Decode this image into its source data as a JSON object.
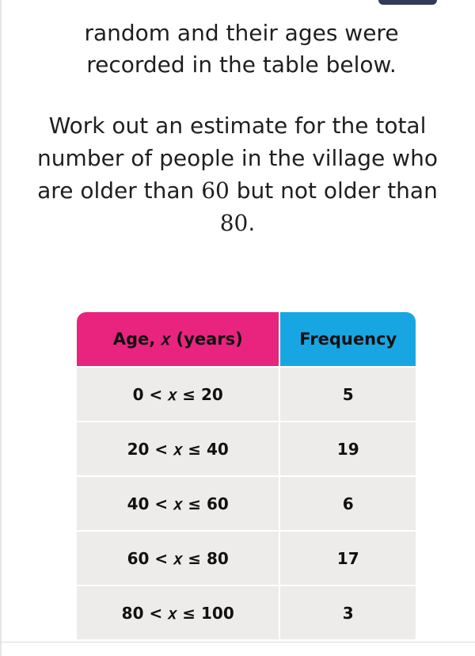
{
  "intro": {
    "line1": "random and their ages were",
    "line2": "recorded in the table below."
  },
  "question": {
    "line1": "Work out an estimate for the total",
    "line2": "number of people in the village who",
    "line3_prefix": "are older than ",
    "line3_value": "60",
    "line3_suffix": " but not older than",
    "line4_value": "80",
    "line4_suffix": "."
  },
  "table": {
    "headers": {
      "age": "Age, 𝑥 (years)",
      "frequency": "Frequency"
    },
    "rows": [
      {
        "age": "0 < 𝑥 ≤ 20",
        "frequency": "5"
      },
      {
        "age": "20 < 𝑥 ≤ 40",
        "frequency": "19"
      },
      {
        "age": "40 < 𝑥 ≤ 60",
        "frequency": "6"
      },
      {
        "age": "60 < 𝑥 ≤ 80",
        "frequency": "17"
      },
      {
        "age": "80 < 𝑥 ≤ 100",
        "frequency": "3"
      }
    ],
    "colors": {
      "age_header": "#e8247e",
      "frequency_header": "#18a6e3",
      "row_background": "#eeecea"
    }
  }
}
